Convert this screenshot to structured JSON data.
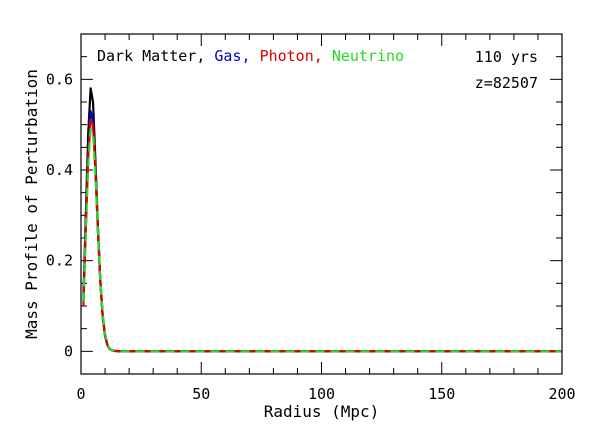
{
  "chart_data": {
    "type": "line",
    "xlabel": "Radius (Mpc)",
    "ylabel": "Mass Profile of Perturbation",
    "xlim": [
      0,
      200
    ],
    "ylim": [
      -0.05,
      0.7
    ],
    "xticks": [
      0,
      50,
      100,
      150,
      200
    ],
    "xtick_labels": [
      "0",
      "50",
      "100",
      "150",
      "200"
    ],
    "yticks": [
      0,
      0.2,
      0.4,
      0.6
    ],
    "ytick_labels": [
      "0",
      "0.2",
      "0.4",
      "0.6"
    ],
    "grid": false,
    "legend": {
      "placement": "top-left",
      "entries": [
        {
          "text": "Dark Matter",
          "color": "#000000"
        },
        {
          "text": "Gas",
          "color": "#0000cc"
        },
        {
          "text": "Photon",
          "color": "#dd0000"
        },
        {
          "text": "Neutrino",
          "color": "#22dd22"
        }
      ],
      "separator": ", "
    },
    "annotations": {
      "time": "110 yrs",
      "redshift": "z=82507"
    },
    "series": [
      {
        "name": "Dark Matter",
        "color": "#000000",
        "style": "solid",
        "x": [
          1,
          2,
          3,
          4,
          5,
          6,
          7,
          8,
          9,
          10,
          11,
          12,
          13,
          14,
          16,
          20,
          50,
          100,
          150,
          200
        ],
        "y": [
          0.12,
          0.3,
          0.48,
          0.58,
          0.55,
          0.42,
          0.28,
          0.16,
          0.08,
          0.035,
          0.014,
          0.005,
          0.002,
          0.001,
          0.0,
          0.0,
          0.0,
          0.0,
          0.0,
          0.0
        ]
      },
      {
        "name": "Gas",
        "color": "#0000cc",
        "style": "solid",
        "x": [
          1,
          2,
          3,
          4,
          5,
          6,
          7,
          8,
          9,
          10,
          11,
          12,
          13,
          14,
          16,
          20,
          50,
          100,
          150,
          200
        ],
        "y": [
          0.11,
          0.28,
          0.44,
          0.53,
          0.51,
          0.4,
          0.27,
          0.155,
          0.078,
          0.034,
          0.013,
          0.005,
          0.002,
          0.001,
          0.0,
          0.0,
          0.0,
          0.0,
          0.0,
          0.0
        ]
      },
      {
        "name": "Photon",
        "color": "#dd0000",
        "style": "solid",
        "x": [
          1,
          2,
          3,
          4,
          5,
          6,
          7,
          8,
          9,
          10,
          11,
          12,
          13,
          14,
          16,
          20,
          50,
          100,
          150,
          200
        ],
        "y": [
          0.1,
          0.27,
          0.43,
          0.51,
          0.5,
          0.4,
          0.27,
          0.16,
          0.08,
          0.036,
          0.014,
          0.005,
          0.002,
          0.001,
          0.0,
          0.0,
          0.0,
          0.0,
          0.0,
          0.0
        ]
      },
      {
        "name": "Neutrino",
        "color": "#22dd22",
        "style": "dashed",
        "x": [
          1,
          2,
          3,
          4,
          5,
          6,
          7,
          8,
          9,
          10,
          11,
          12,
          13,
          14,
          16,
          20,
          50,
          100,
          150,
          200
        ],
        "y": [
          0.11,
          0.26,
          0.41,
          0.49,
          0.48,
          0.39,
          0.27,
          0.16,
          0.085,
          0.04,
          0.016,
          0.006,
          0.002,
          0.001,
          0.0,
          0.0,
          0.0,
          0.0,
          0.0,
          0.0
        ]
      }
    ]
  }
}
